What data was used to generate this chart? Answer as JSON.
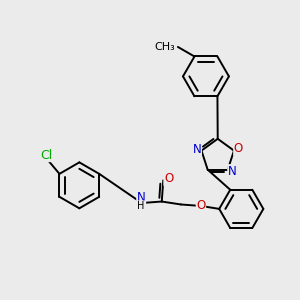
{
  "background_color": "#ebebeb",
  "atom_colors": {
    "C": "#000000",
    "N": "#0000cc",
    "O": "#cc0000",
    "Cl": "#00aa00",
    "H": "#000000"
  },
  "bond_color": "#000000",
  "bond_width": 1.4,
  "font_size": 8.5,
  "fig_width": 3.0,
  "fig_height": 3.0,
  "dpi": 100
}
